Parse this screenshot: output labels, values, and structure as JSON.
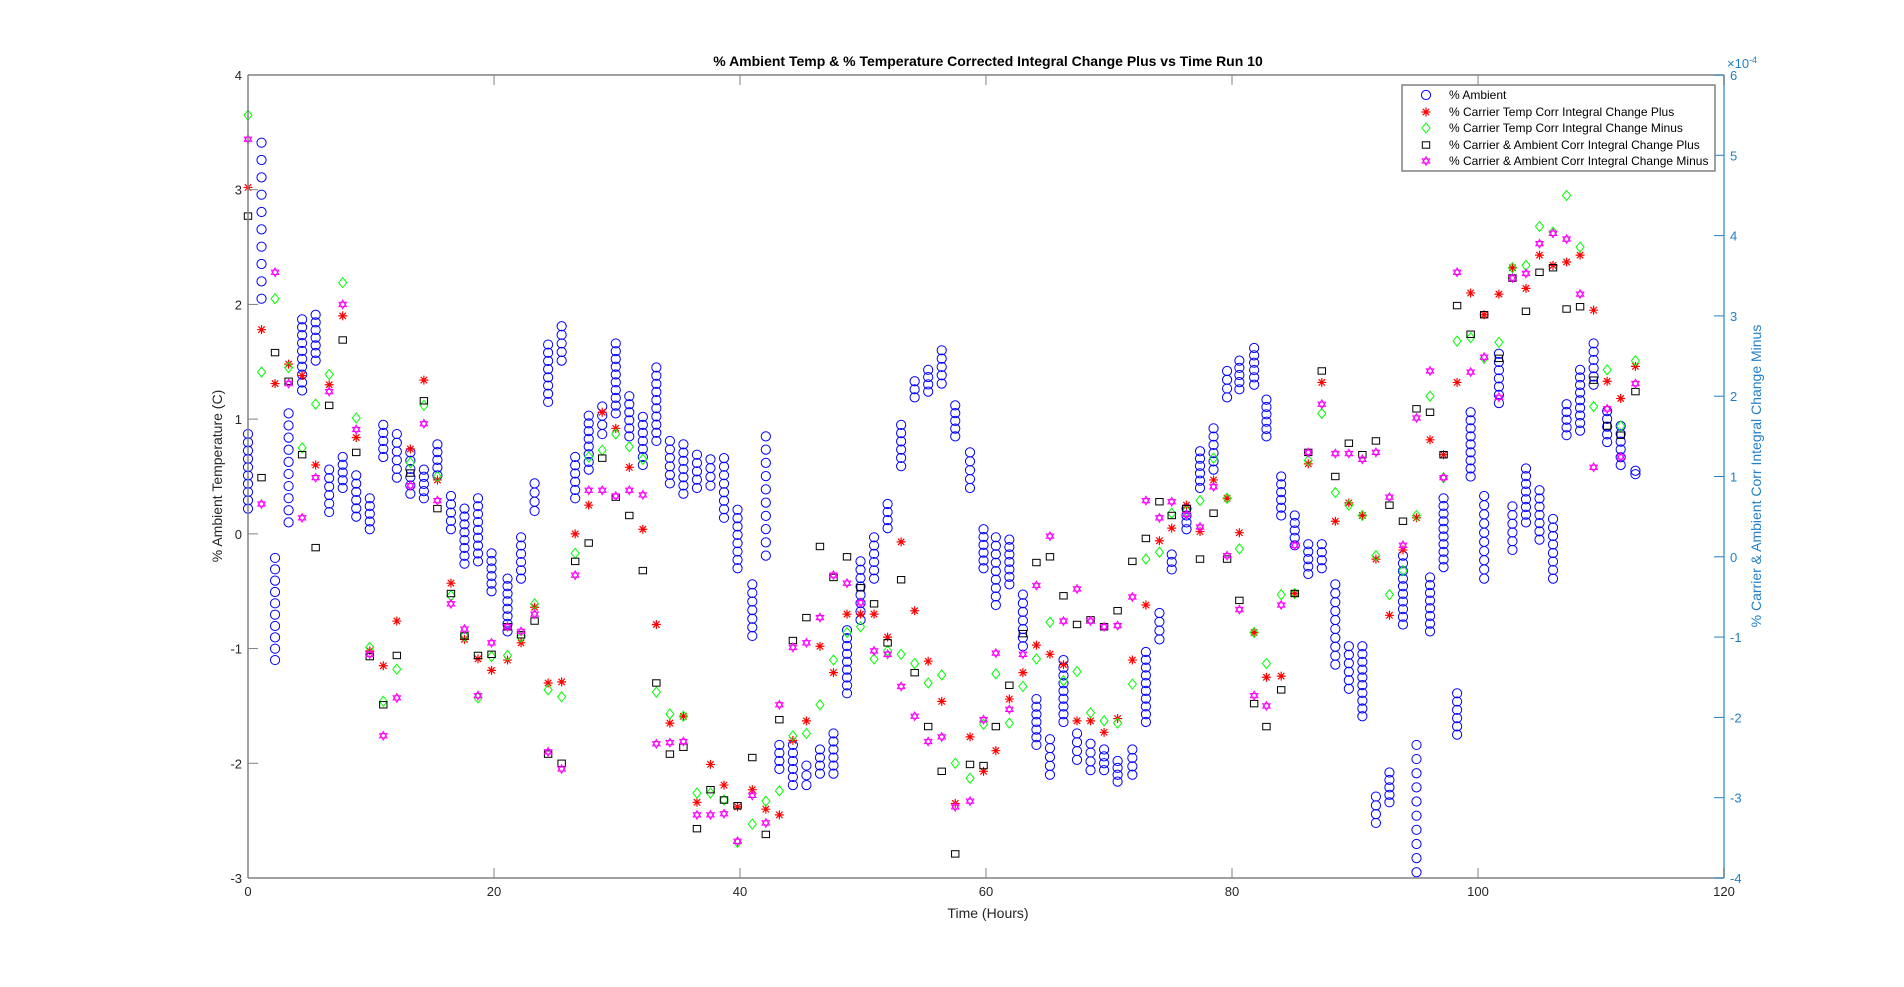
{
  "chart_data": {
    "type": "scatter",
    "title": "% Ambient Temp & % Temperature Corrected Integral Change Plus vs Time Run 10",
    "xlabel": "Time (Hours)",
    "ylabel": "% Ambient Temperature (C)",
    "ylabel_right": "% Carrier & Ambient Corr Integral Change Minus",
    "right_exponent": "×10",
    "right_exponent_power": "-4",
    "xlim": [
      0,
      120
    ],
    "ylim": [
      -3,
      4
    ],
    "ylim_right": [
      -4,
      6
    ],
    "xticks": [
      "0",
      "20",
      "40",
      "60",
      "80",
      "100",
      "120"
    ],
    "yticks": [
      "-3",
      "-2",
      "-1",
      "0",
      "1",
      "2",
      "3",
      "4"
    ],
    "yticks_right": [
      "-4",
      "-3",
      "-2",
      "-1",
      "0",
      "1",
      "2",
      "3",
      "4",
      "5",
      "6"
    ],
    "grid": false,
    "legend_position": "top-right",
    "colors": {
      "ambient": "#0000ff",
      "carrier_plus": "#ff0000",
      "carrier_minus": "#00ff00",
      "carrier_ambient_plus": "#000000",
      "carrier_ambient_minus": "#ff00ff",
      "right_axis": "#1f7fc7"
    },
    "legend": [
      {
        "label": "% Ambient",
        "marker": "circle"
      },
      {
        "label": "% Carrier Temp Corr Integral Change Plus",
        "marker": "star"
      },
      {
        "label": "% Carrier Temp Corr Integral Change Minus",
        "marker": "diamond"
      },
      {
        "label": "% Carrier & Ambient Corr Integral Change Plus",
        "marker": "square"
      },
      {
        "label": "% Carrier & Ambient Corr Integral Change Minus",
        "marker": "hexagram"
      }
    ],
    "ambient_columns_note": "each entry: [time, min, max] of a vertical cluster of ambient readings",
    "ambient_columns": [
      [
        0,
        0.22,
        0.87
      ],
      [
        1.1,
        2.05,
        3.41
      ],
      [
        2.2,
        -1.1,
        -0.21
      ],
      [
        3.3,
        0.1,
        1.05
      ],
      [
        4.4,
        1.25,
        1.87
      ],
      [
        5.5,
        1.51,
        1.91
      ],
      [
        6.6,
        0.19,
        0.56
      ],
      [
        7.7,
        0.4,
        0.67
      ],
      [
        8.8,
        0.15,
        0.51
      ],
      [
        9.9,
        0.04,
        0.31
      ],
      [
        11,
        0.67,
        0.95
      ],
      [
        12.1,
        0.49,
        0.87
      ],
      [
        13.2,
        0.35,
        0.71
      ],
      [
        14.3,
        0.31,
        0.56
      ],
      [
        15.4,
        0.51,
        0.78
      ],
      [
        16.5,
        0.04,
        0.33
      ],
      [
        17.6,
        -0.26,
        0.22
      ],
      [
        18.7,
        -0.24,
        0.31
      ],
      [
        19.8,
        -0.5,
        -0.17
      ],
      [
        21.1,
        -0.85,
        -0.39
      ],
      [
        22.2,
        -0.39,
        -0.03
      ],
      [
        23.3,
        0.2,
        0.44
      ],
      [
        24.4,
        1.15,
        1.65
      ],
      [
        25.5,
        1.51,
        1.81
      ],
      [
        26.6,
        0.31,
        0.67
      ],
      [
        27.7,
        0.56,
        1.03
      ],
      [
        28.8,
        0.87,
        1.11
      ],
      [
        29.9,
        1.05,
        1.66
      ],
      [
        31,
        0.85,
        1.2
      ],
      [
        32.1,
        0.6,
        1.02
      ],
      [
        33.2,
        0.81,
        1.45
      ],
      [
        34.3,
        0.44,
        0.81
      ],
      [
        35.4,
        0.35,
        0.78
      ],
      [
        36.5,
        0.4,
        0.69
      ],
      [
        37.6,
        0.42,
        0.65
      ],
      [
        38.7,
        0.14,
        0.66
      ],
      [
        39.8,
        -0.3,
        0.21
      ],
      [
        41,
        -0.89,
        -0.44
      ],
      [
        42.1,
        -0.19,
        0.85
      ],
      [
        43.2,
        -2.05,
        -1.84
      ],
      [
        44.3,
        -2.19,
        -1.84
      ],
      [
        45.4,
        -2.19,
        -2.02
      ],
      [
        46.5,
        -2.09,
        -1.88
      ],
      [
        47.6,
        -2.09,
        -1.74
      ],
      [
        48.7,
        -1.39,
        -0.84
      ],
      [
        49.8,
        -0.75,
        -0.24
      ],
      [
        50.9,
        -0.39,
        -0.03
      ],
      [
        52,
        0.05,
        0.26
      ],
      [
        53.1,
        0.59,
        0.95
      ],
      [
        54.2,
        1.19,
        1.33
      ],
      [
        55.3,
        1.24,
        1.43
      ],
      [
        56.4,
        1.31,
        1.6
      ],
      [
        57.5,
        0.85,
        1.12
      ],
      [
        58.7,
        0.4,
        0.71
      ],
      [
        59.8,
        -0.3,
        0.04
      ],
      [
        60.8,
        -0.62,
        -0.03
      ],
      [
        61.9,
        -0.44,
        -0.05
      ],
      [
        63,
        -0.98,
        -0.53
      ],
      [
        64.1,
        -1.84,
        -1.44
      ],
      [
        65.2,
        -2.1,
        -1.79
      ],
      [
        66.3,
        -1.64,
        -1.1
      ],
      [
        67.4,
        -1.97,
        -1.74
      ],
      [
        68.5,
        -2.06,
        -1.83
      ],
      [
        69.6,
        -2.06,
        -1.88
      ],
      [
        70.7,
        -2.16,
        -1.98
      ],
      [
        71.9,
        -2.1,
        -1.88
      ],
      [
        73,
        -1.64,
        -1.03
      ],
      [
        74.1,
        -0.92,
        -0.69
      ],
      [
        75.1,
        -0.31,
        -0.18
      ],
      [
        76.3,
        0.04,
        0.22
      ],
      [
        77.4,
        0.4,
        0.72
      ],
      [
        78.5,
        0.56,
        0.92
      ],
      [
        79.6,
        1.19,
        1.42
      ],
      [
        80.6,
        1.26,
        1.51
      ],
      [
        81.8,
        1.3,
        1.62
      ],
      [
        82.8,
        0.85,
        1.17
      ],
      [
        84,
        0.16,
        0.5
      ],
      [
        85.1,
        -0.1,
        0.16
      ],
      [
        86.2,
        -0.35,
        -0.09
      ],
      [
        87.3,
        -0.3,
        -0.09
      ],
      [
        88.4,
        -1.14,
        -0.44
      ],
      [
        89.5,
        -1.35,
        -0.98
      ],
      [
        90.6,
        -1.59,
        -0.98
      ],
      [
        91.7,
        -2.52,
        -2.29
      ],
      [
        92.8,
        -2.34,
        -2.08
      ],
      [
        93.9,
        -0.79,
        -0.19
      ],
      [
        95,
        -2.95,
        -1.84
      ],
      [
        96.1,
        -0.85,
        -0.38
      ],
      [
        97.2,
        -0.29,
        0.31
      ],
      [
        98.3,
        -1.75,
        -1.39
      ],
      [
        99.4,
        0.5,
        1.06
      ],
      [
        100.5,
        -0.39,
        0.33
      ],
      [
        101.7,
        1.14,
        1.57
      ],
      [
        102.8,
        -0.14,
        0.24
      ],
      [
        103.9,
        0.1,
        0.57
      ],
      [
        105,
        -0.05,
        0.38
      ],
      [
        106.1,
        -0.39,
        0.13
      ],
      [
        107.2,
        0.86,
        1.13
      ],
      [
        108.3,
        0.9,
        1.43
      ],
      [
        109.4,
        1.3,
        1.66
      ],
      [
        110.5,
        0.8,
        1.07
      ],
      [
        111.6,
        0.6,
        0.94
      ],
      [
        112.8,
        0.52,
        0.55
      ]
    ],
    "x": [
      0,
      1.1,
      2.2,
      3.3,
      4.4,
      5.5,
      6.6,
      7.7,
      8.8,
      9.9,
      11.0,
      12.1,
      13.2,
      14.3,
      15.4,
      16.5,
      17.6,
      18.7,
      19.8,
      21.1,
      22.2,
      23.3,
      24.4,
      25.5,
      26.6,
      27.7,
      28.8,
      29.9,
      31.0,
      32.1,
      33.2,
      34.3,
      35.4,
      36.5,
      37.6,
      38.7,
      39.8,
      41.0,
      42.1,
      43.2,
      44.3,
      45.4,
      46.5,
      47.6,
      48.7,
      49.8,
      50.9,
      52.0,
      53.1,
      54.2,
      55.3,
      56.4,
      57.5,
      58.7,
      59.8,
      60.8,
      61.9,
      63.0,
      64.1,
      65.2,
      66.3,
      67.4,
      68.5,
      69.6,
      70.7,
      71.9,
      73.0,
      74.1,
      75.1,
      76.3,
      77.4,
      78.5,
      79.6,
      80.6,
      81.8,
      82.8,
      84.0,
      85.1,
      86.2,
      87.3,
      88.4,
      89.5,
      90.6,
      91.7,
      92.8,
      93.9,
      95.0,
      96.1,
      97.2,
      98.3,
      99.4,
      100.5,
      101.7,
      102.8,
      103.9,
      105.0,
      106.1,
      107.2,
      108.3,
      109.4,
      110.5,
      111.6,
      112.8
    ],
    "series": [
      {
        "name": "% Carrier Temp Corr Integral Change Plus",
        "marker": "star",
        "values": [
          3.02,
          1.78,
          1.31,
          1.48,
          1.38,
          0.6,
          1.3,
          1.9,
          0.84,
          -1.02,
          -1.15,
          -0.76,
          0.74,
          1.34,
          0.47,
          -0.43,
          -0.92,
          -1.09,
          -1.19,
          -1.1,
          -0.95,
          -0.64,
          -1.3,
          -1.29,
          0.0,
          0.25,
          1.06,
          0.92,
          0.58,
          0.04,
          -0.79,
          -1.65,
          -1.59,
          -2.34,
          -2.01,
          -2.19,
          -2.38,
          -2.23,
          -2.4,
          -2.45,
          -1.8,
          -1.63,
          -0.98,
          -1.21,
          -0.7,
          -0.7,
          -0.7,
          -0.9,
          -0.07,
          -0.67,
          -1.11,
          -1.46,
          -2.35,
          -1.77,
          -2.07,
          -1.89,
          -1.44,
          -1.21,
          -0.97,
          -1.05,
          -1.14,
          -1.63,
          -1.63,
          -1.73,
          -1.61,
          -1.1,
          -0.62,
          -0.06,
          0.05,
          0.25,
          0.02,
          0.47,
          0.31,
          0.01,
          -0.86,
          -1.25,
          -1.24,
          -0.52,
          0.61,
          1.32,
          0.11,
          0.27,
          0.16,
          -0.22,
          -0.71,
          -0.14,
          0.14,
          0.82,
          0.69,
          1.32,
          2.1,
          1.91,
          2.09,
          2.32,
          2.14,
          2.43,
          2.34,
          2.37,
          2.43,
          1.95,
          1.33,
          1.18,
          1.46
        ]
      },
      {
        "name": "% Carrier Temp Corr Integral Change Minus",
        "marker": "diamond",
        "values": [
          3.65,
          1.41,
          2.05,
          1.45,
          0.75,
          1.13,
          1.39,
          2.19,
          1.01,
          -0.99,
          -1.46,
          -1.18,
          0.62,
          1.12,
          0.5,
          -0.54,
          -0.89,
          -1.43,
          -1.07,
          -1.06,
          -0.9,
          -0.61,
          -1.36,
          -1.42,
          -0.17,
          0.67,
          0.73,
          0.87,
          0.76,
          0.65,
          -1.38,
          -1.57,
          -1.59,
          -2.26,
          -2.26,
          -2.32,
          -2.69,
          -2.53,
          -2.33,
          -2.24,
          -1.76,
          -1.74,
          -1.49,
          -1.1,
          -0.86,
          -0.81,
          -1.09,
          -1.02,
          -1.05,
          -1.13,
          -1.3,
          -1.23,
          -2.0,
          -2.13,
          -1.66,
          -1.22,
          -1.65,
          -1.33,
          -1.09,
          -0.77,
          -1.28,
          -1.2,
          -1.56,
          -1.63,
          -1.65,
          -1.31,
          -0.22,
          -0.16,
          0.18,
          0.2,
          0.29,
          0.66,
          0.31,
          -0.13,
          -0.86,
          -1.13,
          -0.53,
          -0.52,
          0.64,
          1.05,
          0.36,
          0.25,
          0.16,
          -0.19,
          -0.53,
          -0.32,
          0.16,
          1.2,
          0.49,
          1.68,
          1.71,
          1.53,
          1.67,
          2.32,
          2.34,
          2.68,
          2.63,
          2.95,
          2.5,
          1.11,
          1.43,
          0.94,
          1.51
        ]
      },
      {
        "name": "% Carrier & Ambient Corr Integral Change Plus",
        "marker": "square",
        "values": [
          2.77,
          0.49,
          1.58,
          1.33,
          0.69,
          -0.12,
          1.12,
          1.69,
          0.71,
          -1.07,
          -1.49,
          -1.06,
          0.53,
          1.16,
          0.22,
          -0.52,
          -0.89,
          -1.06,
          -1.05,
          -0.81,
          -0.88,
          -0.76,
          -1.92,
          -2.0,
          -0.24,
          -0.08,
          0.66,
          0.32,
          0.16,
          -0.32,
          -1.3,
          -1.92,
          -1.86,
          -2.57,
          -2.23,
          -2.32,
          -2.37,
          -1.95,
          -2.62,
          -1.62,
          -0.93,
          -0.73,
          -0.11,
          -0.38,
          -0.2,
          -0.47,
          -0.61,
          -0.95,
          -0.4,
          -1.21,
          -1.68,
          -2.07,
          -2.79,
          -2.01,
          -2.02,
          -1.68,
          -1.32,
          -0.87,
          -0.25,
          -0.2,
          -0.54,
          -0.79,
          -0.75,
          -0.81,
          -0.67,
          -0.24,
          -0.04,
          0.28,
          0.16,
          0.22,
          -0.22,
          0.18,
          -0.22,
          -0.58,
          -1.48,
          -1.68,
          -1.36,
          -0.52,
          0.71,
          1.42,
          0.5,
          0.79,
          0.69,
          0.81,
          0.25,
          0.11,
          1.09,
          1.06,
          0.69,
          1.99,
          1.74,
          1.91,
          1.53,
          2.23,
          1.94,
          2.28,
          2.32,
          1.96,
          1.98,
          1.34,
          0.94,
          0.86,
          1.24
        ]
      },
      {
        "name": "% Carrier & Ambient Corr Integral Change Minus",
        "marker": "hexagram",
        "values": [
          3.44,
          0.26,
          2.28,
          1.31,
          0.14,
          0.49,
          1.24,
          2.0,
          0.91,
          -1.05,
          -1.76,
          -1.43,
          0.42,
          0.96,
          0.29,
          -0.61,
          -0.83,
          -1.41,
          -0.95,
          -0.81,
          -0.85,
          -0.7,
          -1.9,
          -2.05,
          -0.36,
          0.38,
          0.38,
          0.33,
          0.38,
          0.34,
          -1.83,
          -1.82,
          -1.81,
          -2.45,
          -2.45,
          -2.44,
          -2.68,
          -2.28,
          -2.52,
          -1.49,
          -0.99,
          -0.95,
          -0.73,
          -0.36,
          -0.43,
          -0.6,
          -1.02,
          -1.05,
          -1.33,
          -1.59,
          -1.81,
          -1.77,
          -2.38,
          -2.33,
          -1.62,
          -1.04,
          -1.53,
          -1.05,
          -0.45,
          -0.02,
          -0.76,
          -0.48,
          -0.76,
          -0.81,
          -0.8,
          -0.55,
          0.29,
          0.14,
          0.28,
          0.17,
          0.06,
          0.41,
          -0.19,
          -0.66,
          -1.41,
          -1.5,
          -0.62,
          -0.1,
          0.71,
          1.13,
          0.7,
          0.7,
          0.65,
          0.71,
          0.32,
          -0.1,
          1.01,
          1.42,
          0.49,
          2.28,
          1.41,
          1.54,
          1.19,
          2.23,
          2.27,
          2.53,
          2.62,
          2.57,
          2.09,
          0.58,
          1.09,
          0.67,
          1.31
        ]
      }
    ]
  }
}
